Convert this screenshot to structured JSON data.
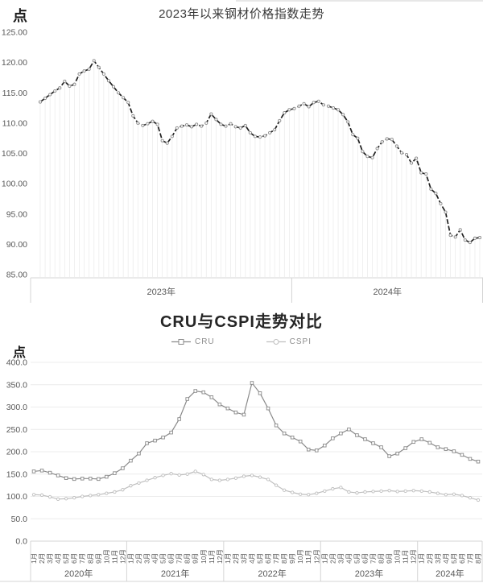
{
  "colors": {
    "index_line": "#1f1f1f",
    "cru_line": "#8a8a8a",
    "cspi_line": "#bfbfbf",
    "grid": "#ececec",
    "axis": "#d4d4d4",
    "tick_text": "#595959",
    "title_text": "#333333"
  },
  "chart_data": [
    {
      "type": "line",
      "title": "2023年以来钢材价格指数走势",
      "unit": "点",
      "ylim": [
        85,
        125
      ],
      "y_ticks": [
        "125.00",
        "120.00",
        "115.00",
        "110.00",
        "105.00",
        "100.00",
        "95.00",
        "90.00",
        "85.00"
      ],
      "grid": "none",
      "legend_position": "none",
      "x_groups": [
        {
          "label": "2023年",
          "count": 52
        },
        {
          "label": "2024年",
          "count": 39
        }
      ],
      "series": [
        {
          "name": "钢材价格指数",
          "style": "dashed-with-markers",
          "values": [
            113.5,
            114.1,
            114.7,
            115.3,
            115.8,
            116.9,
            116.1,
            116.4,
            118.1,
            118.6,
            118.9,
            120.3,
            119.2,
            118.1,
            117.0,
            116.0,
            115.0,
            114.2,
            113.4,
            111.2,
            110.0,
            109.6,
            109.9,
            110.3,
            109.8,
            107.1,
            106.7,
            107.8,
            109.2,
            109.5,
            109.7,
            109.4,
            109.8,
            109.5,
            110.0,
            111.5,
            110.6,
            109.8,
            109.5,
            109.9,
            109.4,
            109.2,
            109.6,
            108.4,
            107.8,
            107.7,
            107.9,
            108.4,
            108.9,
            110.4,
            111.7,
            112.2,
            112.4,
            112.8,
            113.2,
            112.7,
            113.4,
            113.6,
            113.0,
            112.8,
            112.5,
            112.2,
            111.4,
            110.2,
            108.1,
            107.5,
            105.3,
            104.5,
            104.3,
            105.8,
            106.9,
            107.4,
            107.3,
            106.2,
            105.1,
            104.8,
            103.4,
            104.2,
            101.8,
            101.6,
            99.1,
            98.4,
            96.7,
            95.3,
            91.5,
            91.2,
            92.4,
            90.7,
            90.3,
            91.0,
            91.1
          ]
        }
      ]
    },
    {
      "type": "line",
      "title": "CRU与CSPI走势对比",
      "unit": "点",
      "ylim": [
        0,
        400
      ],
      "y_ticks": [
        "400.0",
        "350.0",
        "300.0",
        "250.0",
        "200.0",
        "150.0",
        "100.0",
        "50.0",
        "0.0"
      ],
      "grid": "horizontal",
      "legend_position": "top",
      "x_years": [
        {
          "label": "2020年",
          "months": [
            "1月",
            "2月",
            "3月",
            "4月",
            "5月",
            "6月",
            "7月",
            "8月",
            "9月",
            "10月",
            "11月",
            "12月"
          ]
        },
        {
          "label": "2021年",
          "months": [
            "1月",
            "2月",
            "3月",
            "4月",
            "5月",
            "6月",
            "7月",
            "8月",
            "9月",
            "10月",
            "11月",
            "12月"
          ]
        },
        {
          "label": "2022年",
          "months": [
            "1月",
            "2月",
            "3月",
            "4月",
            "5月",
            "6月",
            "7月",
            "8月",
            "9月",
            "10月",
            "11月",
            "12月"
          ]
        },
        {
          "label": "2023年",
          "months": [
            "1月",
            "2月",
            "3月",
            "4月",
            "5月",
            "6月",
            "7月",
            "8月",
            "9月",
            "10月",
            "11月",
            "12月"
          ]
        },
        {
          "label": "2024年",
          "months": [
            "1月",
            "2月",
            "3月",
            "4月",
            "5月",
            "6月",
            "7月",
            "8月"
          ]
        }
      ],
      "series": [
        {
          "name": "CRU",
          "marker": "square",
          "values": [
            156,
            158,
            153,
            147,
            141,
            139,
            140,
            140,
            139,
            144,
            152,
            163,
            180,
            196,
            219,
            225,
            232,
            243,
            273,
            318,
            336,
            333,
            322,
            306,
            297,
            288,
            283,
            354,
            331,
            297,
            259,
            241,
            232,
            223,
            205,
            203,
            214,
            230,
            241,
            250,
            237,
            228,
            219,
            210,
            190,
            196,
            208,
            222,
            228,
            220,
            210,
            206,
            201,
            193,
            184,
            178
          ]
        },
        {
          "name": "CSPI",
          "marker": "circle",
          "values": [
            104,
            103,
            99,
            94,
            95,
            97,
            100,
            102,
            104,
            107,
            110,
            115,
            124,
            130,
            136,
            142,
            147,
            151,
            148,
            150,
            156,
            149,
            138,
            136,
            138,
            141,
            145,
            147,
            143,
            138,
            125,
            114,
            109,
            105,
            104,
            107,
            112,
            117,
            120,
            110,
            108,
            110,
            111,
            112,
            113,
            111,
            112,
            113,
            112,
            110,
            107,
            104,
            105,
            102,
            97,
            92
          ]
        }
      ]
    }
  ]
}
